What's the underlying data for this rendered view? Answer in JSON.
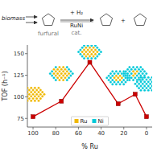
{
  "chart_data": {
    "type": "line",
    "x_label": "% Ru",
    "y_label": "TOF (h⁻¹)",
    "x": [
      100,
      75,
      50,
      25,
      10,
      0
    ],
    "series": [
      {
        "values": [
          77,
          95,
          140,
          92,
          103,
          77
        ],
        "color": "#cc0000",
        "marker": "square"
      }
    ],
    "xlim": [
      105,
      -5
    ],
    "ylim": [
      65,
      160
    ],
    "xticks": [
      100,
      80,
      60,
      40,
      20,
      0
    ],
    "yticks": [
      75,
      100,
      125,
      150
    ],
    "grid": false,
    "particles": {
      "x": [
        100,
        75,
        50,
        25,
        10,
        0
      ],
      "y": [
        103,
        127,
        152,
        122,
        127,
        115
      ],
      "ru_fraction": [
        1.0,
        0.65,
        0.5,
        0.2,
        0.1,
        0.0
      ]
    },
    "particle_series": [
      {
        "name": "Ru",
        "color": "#f0b800"
      },
      {
        "name": "Ni",
        "color": "#00c8d8"
      }
    ],
    "legend": "lower center",
    "annotations": [
      "biomass",
      "furfural",
      "+ H₂",
      "RuNi",
      "cat.",
      "+"
    ]
  }
}
